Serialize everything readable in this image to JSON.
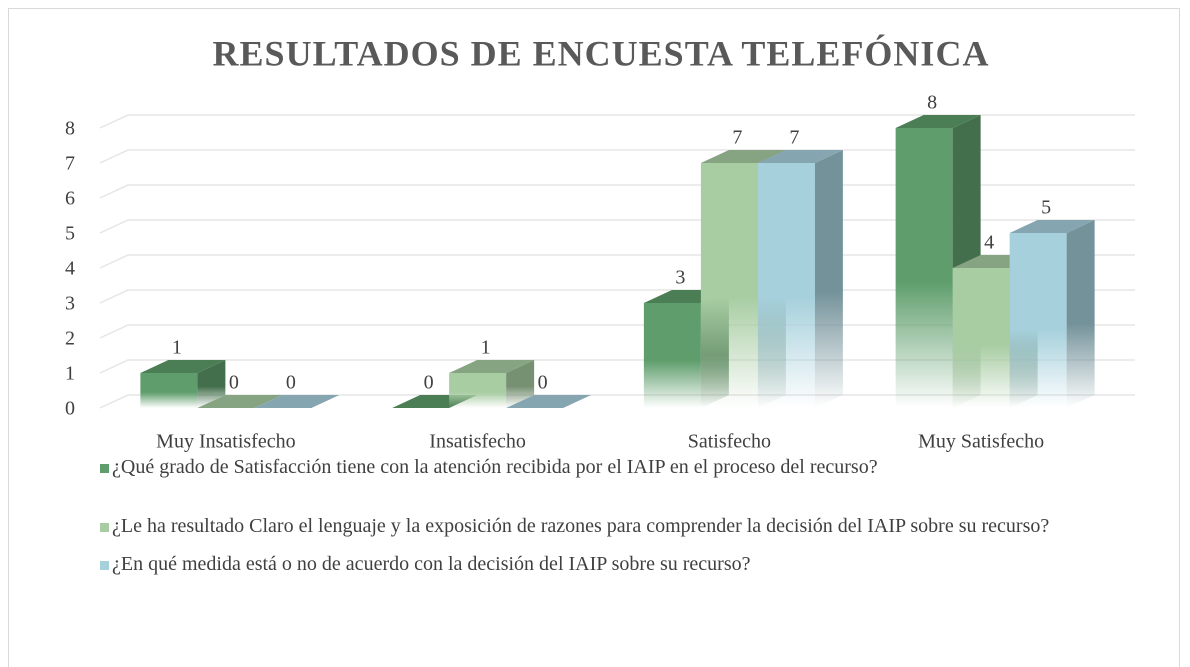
{
  "chart_data": {
    "type": "bar3d",
    "title": "RESULTADOS DE ENCUESTA TELEFÓNICA",
    "categories": [
      "Muy Insatisfecho",
      "Insatisfecho",
      "Satisfecho",
      "Muy Satisfecho"
    ],
    "series": [
      {
        "name": "¿Qué grado de Satisfacción tiene con la atención recibida por el IAIP en el proceso del recurso?",
        "color": "#5f9e6c",
        "values": [
          1,
          0,
          3,
          8
        ]
      },
      {
        "name": "¿Le ha resultado Claro el lenguaje y la exposición de razones para comprender la decisión del IAIP sobre su recurso?",
        "color": "#a8cda3",
        "values": [
          0,
          1,
          7,
          4
        ]
      },
      {
        "name": "¿En qué medida está o no de acuerdo con la decisión del IAIP sobre su recurso?",
        "color": "#a6d0dc",
        "values": [
          0,
          0,
          7,
          5
        ]
      }
    ],
    "ylim": [
      0,
      8
    ],
    "yticks": [
      0,
      1,
      2,
      3,
      4,
      5,
      6,
      7,
      8
    ],
    "grid": true,
    "legend": "bottom"
  }
}
